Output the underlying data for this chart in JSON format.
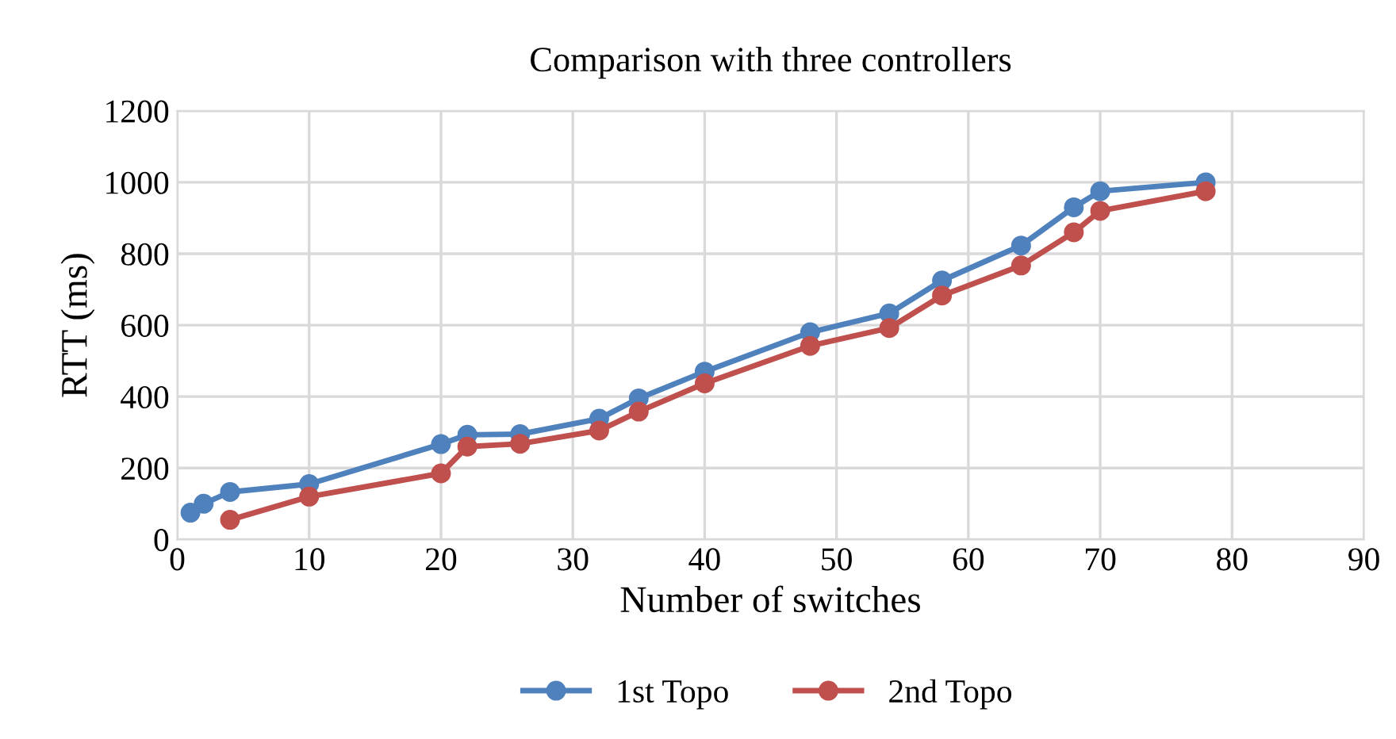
{
  "chart_data": {
    "type": "line",
    "title": "Comparison with three controllers",
    "xlabel": "Number of switches",
    "ylabel": "RTT (ms)",
    "xlim": [
      0,
      90
    ],
    "xticks": [
      0,
      10,
      20,
      30,
      40,
      50,
      60,
      70,
      80,
      90
    ],
    "ylim": [
      0,
      1200
    ],
    "yticks": [
      0,
      200,
      400,
      600,
      800,
      1000,
      1200
    ],
    "grid": true,
    "legend": "bottom",
    "marker": "circle",
    "line_style": "solid",
    "series": [
      {
        "name": "1st Topo",
        "color": "#4f81bd",
        "x": [
          1,
          2,
          4,
          10,
          20,
          22,
          26,
          32,
          35,
          40,
          48,
          54,
          58,
          64,
          68,
          70,
          78
        ],
        "values": [
          75,
          100,
          133,
          155,
          267,
          293,
          295,
          338,
          395,
          470,
          580,
          633,
          725,
          823,
          930,
          975,
          1000
        ]
      },
      {
        "name": "2nd Topo",
        "color": "#c0504d",
        "x": [
          4,
          10,
          20,
          22,
          26,
          32,
          35,
          40,
          48,
          54,
          58,
          64,
          68,
          70,
          78
        ],
        "values": [
          55,
          120,
          185,
          260,
          268,
          305,
          358,
          437,
          542,
          592,
          683,
          767,
          860,
          920,
          975
        ]
      }
    ]
  }
}
